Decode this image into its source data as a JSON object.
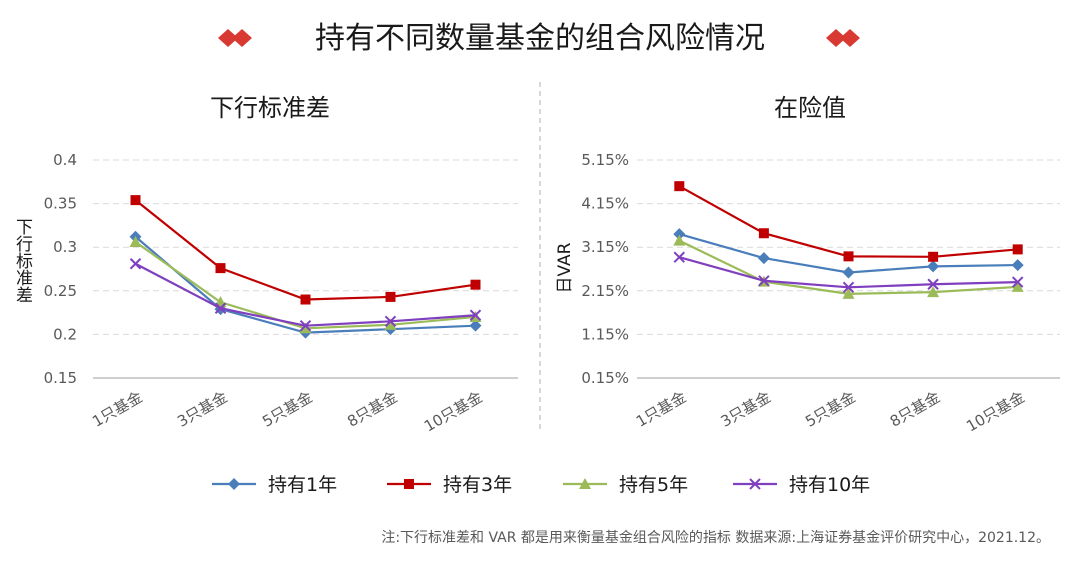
{
  "header": {
    "title": "持有不同数量基金的组合风险情况"
  },
  "legend": {
    "position": "bottom-center",
    "entries": [
      {
        "name": "持有1年",
        "color": "#4a7ebb",
        "marker": "diamond"
      },
      {
        "name": "持有3年",
        "color": "#c00000",
        "marker": "square"
      },
      {
        "name": "持有5年",
        "color": "#9bbb59",
        "marker": "triangle"
      },
      {
        "name": "持有10年",
        "color": "#7f3fbf",
        "marker": "x"
      }
    ]
  },
  "colors": {
    "title_decoration": "#d83a32",
    "grid": "#d9d9d9",
    "axis": "#bfbfbf",
    "divider": "#bfbfbf",
    "tick_text": "#595959"
  },
  "footer": {
    "note": "注:下行标准差和 VAR 都是用来衡量基金组合风险的指标 数据来源:上海证券基金评价研究中心，2021.12。"
  },
  "chart_data": [
    {
      "type": "line",
      "title": "下行标准差",
      "xlabel": "",
      "ylabel": "下行标准差",
      "categories": [
        "1只基金",
        "3只基金",
        "5只基金",
        "8只基金",
        "10只基金"
      ],
      "ylim": [
        0.15,
        0.4
      ],
      "yticks": [
        "0.15",
        "0.2",
        "0.25",
        "0.3",
        "0.35",
        "0.4"
      ],
      "ytick_values": [
        0.15,
        0.2,
        0.25,
        0.3,
        0.35,
        0.4
      ],
      "grid": true,
      "series": [
        {
          "name": "持有1年",
          "values": [
            0.312,
            0.229,
            0.202,
            0.206,
            0.21
          ]
        },
        {
          "name": "持有3年",
          "values": [
            0.354,
            0.276,
            0.24,
            0.243,
            0.257
          ]
        },
        {
          "name": "持有5年",
          "values": [
            0.306,
            0.237,
            0.207,
            0.211,
            0.22
          ]
        },
        {
          "name": "持有10年",
          "values": [
            0.281,
            0.23,
            0.21,
            0.215,
            0.222
          ]
        }
      ]
    },
    {
      "type": "line",
      "title": "在险值",
      "xlabel": "",
      "ylabel": "日VAR",
      "categories": [
        "1只基金",
        "3只基金",
        "5只基金",
        "8只基金",
        "10只基金"
      ],
      "ylim": [
        0.15,
        5.15
      ],
      "yticks": [
        "0.15%",
        "1.15%",
        "2.15%",
        "3.15%",
        "4.15%",
        "5.15%"
      ],
      "ytick_values": [
        0.15,
        1.15,
        2.15,
        3.15,
        4.15,
        5.15
      ],
      "grid": true,
      "series": [
        {
          "name": "持有1年",
          "values": [
            3.45,
            2.9,
            2.57,
            2.71,
            2.74
          ]
        },
        {
          "name": "持有3年",
          "values": [
            4.55,
            3.47,
            2.94,
            2.93,
            3.1
          ]
        },
        {
          "name": "持有5年",
          "values": [
            3.3,
            2.36,
            2.08,
            2.12,
            2.24
          ]
        },
        {
          "name": "持有10年",
          "values": [
            2.92,
            2.38,
            2.23,
            2.3,
            2.35
          ]
        }
      ]
    }
  ]
}
